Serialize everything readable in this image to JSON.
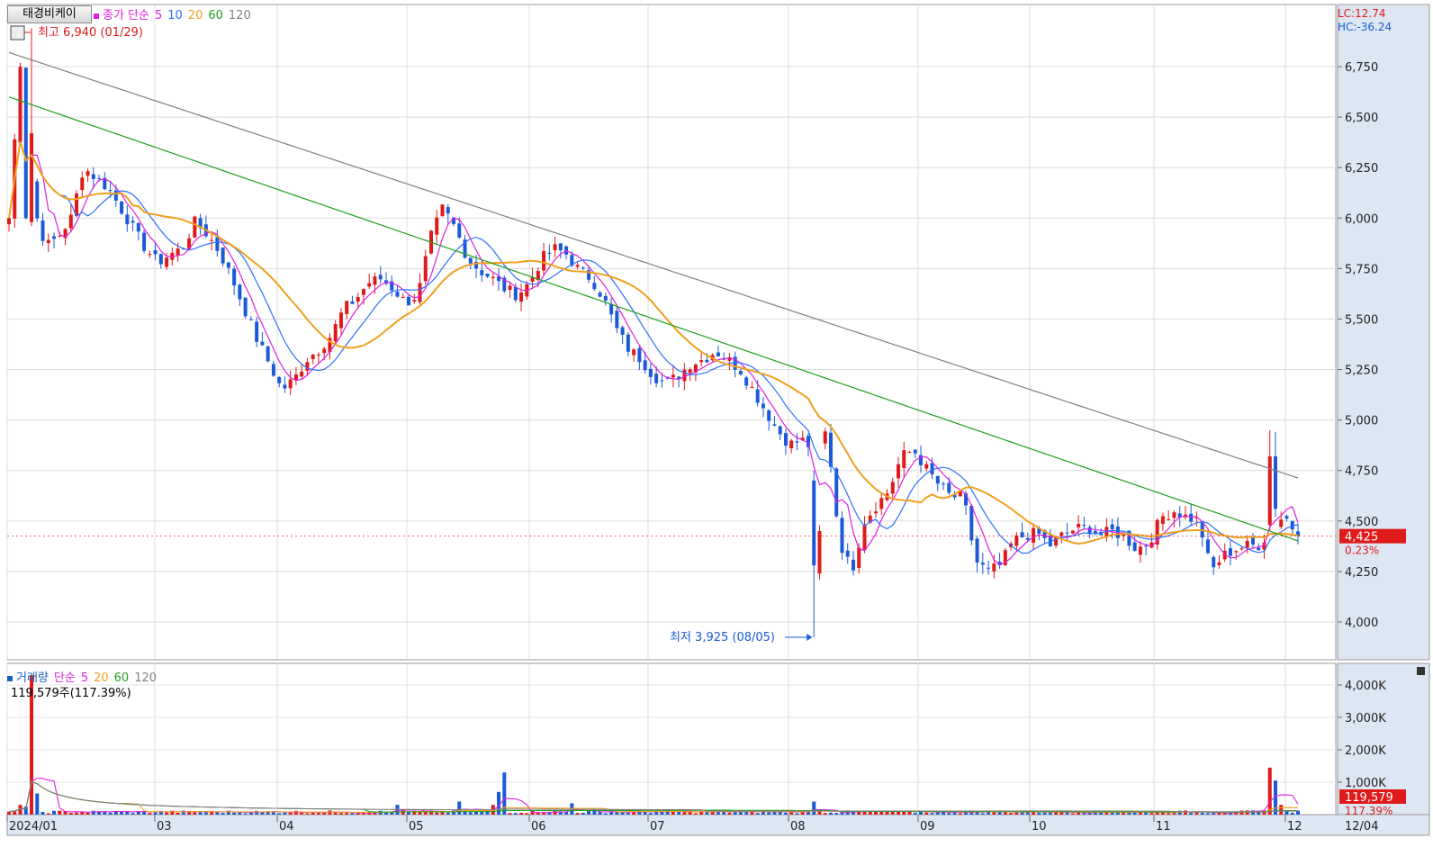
{
  "header": {
    "stock_name": "태경비케이",
    "price_legend": [
      {
        "text": "종가 단순",
        "color": "#e020e0"
      },
      {
        "text": "5",
        "color": "#e020e0"
      },
      {
        "text": "10",
        "color": "#2f6fff"
      },
      {
        "text": "20",
        "color": "#f0a020"
      },
      {
        "text": "60",
        "color": "#20a020"
      },
      {
        "text": "120",
        "color": "#808080"
      }
    ],
    "lc_text": "LC:12.74",
    "hc_text": "HC:-36.24",
    "high_annotation": "최고 6,940 (01/29)",
    "low_annotation": "최저 3,925 (08/05)"
  },
  "price_axis": {
    "ticks": [
      "6,750",
      "6,500",
      "6,250",
      "6,000",
      "5,750",
      "5,500",
      "5,250",
      "5,000",
      "4,750",
      "4,500",
      "4,250",
      "4,000"
    ],
    "current_price": "4,425",
    "current_change": "0.23%"
  },
  "volume": {
    "legend": [
      {
        "text": "거래량",
        "color": "#1a60c0"
      },
      {
        "text": "단순",
        "color": "#e020e0"
      },
      {
        "text": "5",
        "color": "#e020e0"
      },
      {
        "text": "20",
        "color": "#f0a020"
      },
      {
        "text": "60",
        "color": "#20a020"
      },
      {
        "text": "120",
        "color": "#808080"
      }
    ],
    "info": "119,579주(117.39%)",
    "ticks": [
      "4,000K",
      "3,000K",
      "2,000K",
      "1,000K"
    ],
    "current_volume": "119,579",
    "current_ratio": "117.39%"
  },
  "date_axis": {
    "labels": [
      "2024/01",
      "03",
      "04",
      "05",
      "06",
      "07",
      "08",
      "09",
      "10",
      "11",
      "12"
    ],
    "right_label": "12/04"
  },
  "chart_data": {
    "type": "candlestick",
    "title": "태경비케이",
    "x_dates": [
      "2024/01",
      "03",
      "04",
      "05",
      "06",
      "07",
      "08",
      "09",
      "10",
      "11",
      "12",
      "12/04"
    ],
    "price_ylim": [
      3850,
      7000
    ],
    "price_series": [
      {
        "name": "종가 단순 5",
        "color": "#e020e0"
      },
      {
        "name": "10",
        "color": "#2f6fff"
      },
      {
        "name": "20",
        "color": "#f0a020"
      },
      {
        "name": "60",
        "color": "#20a020"
      },
      {
        "name": "120",
        "color": "#808080"
      }
    ],
    "approx_closes": [
      6000,
      6850,
      6050,
      5860,
      5910,
      6000,
      6250,
      6200,
      6150,
      6050,
      5950,
      5850,
      5780,
      5820,
      5850,
      5980,
      5920,
      5830,
      5700,
      5550,
      5400,
      5280,
      5150,
      5200,
      5300,
      5350,
      5420,
      5550,
      5600,
      5680,
      5700,
      5650,
      5580,
      5620,
      5900,
      6050,
      5950,
      5800,
      5740,
      5700,
      5650,
      5620,
      5680,
      5800,
      5850,
      5820,
      5740,
      5700,
      5600,
      5450,
      5350,
      5300,
      5220,
      5180,
      5220,
      5280,
      5300,
      5340,
      5300,
      5250,
      5150,
      5050,
      4950,
      4880,
      4900,
      4850,
      4950,
      4400,
      4250,
      4500,
      4580,
      4650,
      4820,
      4850,
      4760,
      4680,
      4620,
      4620,
      4300,
      4250,
      4280,
      4400,
      4430,
      4440,
      4380,
      4430,
      4460,
      4470,
      4430,
      4450,
      4420,
      4360,
      4400,
      4520,
      4550,
      4520,
      4500,
      4250,
      4330,
      4360,
      4380,
      4380,
      4500,
      4520,
      4425
    ],
    "high": {
      "value": 6940,
      "date": "01/29"
    },
    "low": {
      "value": 3925,
      "date": "08/05"
    },
    "last_close": 4425,
    "volume_ylim": [
      0,
      4500000
    ],
    "volume_ma_series": [
      "5",
      "20",
      "60",
      "120"
    ],
    "volume_spikes_k": [
      {
        "date": "01/29",
        "value": 4300
      },
      {
        "date": "05/20",
        "value": 1300
      },
      {
        "date": "12/02",
        "value": 1450
      }
    ],
    "last_volume": 119579
  }
}
